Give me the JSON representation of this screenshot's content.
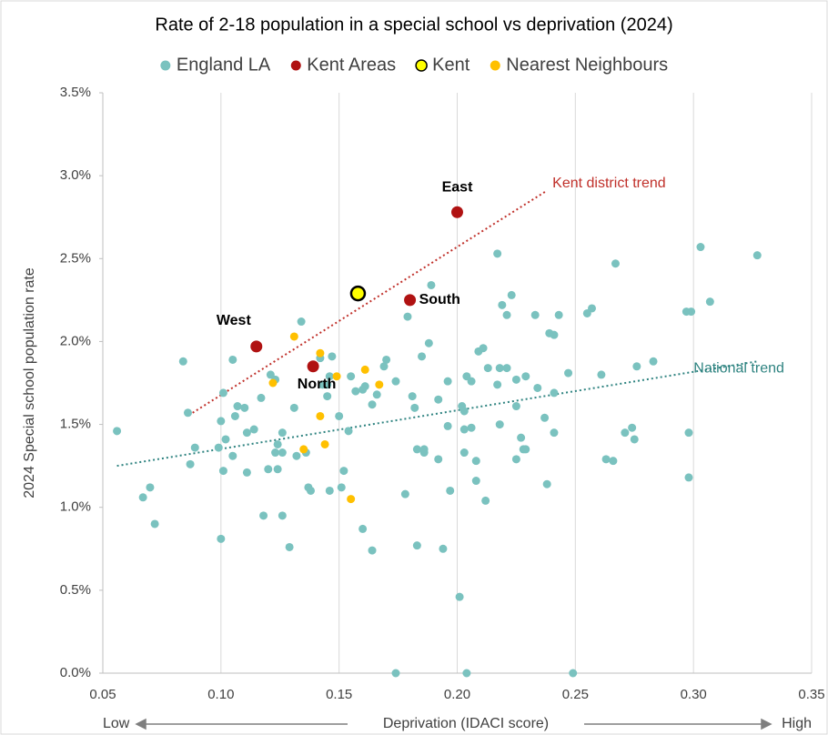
{
  "chart_data": {
    "type": "scatter",
    "title": "Rate of 2-18 population in a special school vs deprivation (2024)",
    "x_label": "Deprivation (IDACI score)",
    "y_label": "2024 Special school population rate",
    "x_low": "Low",
    "x_high": "High",
    "xlim": [
      0.05,
      0.35
    ],
    "ylim": [
      0,
      3.5
    ],
    "xticks": [
      0.05,
      {
        "value": 0.1,
        "label": "0.10"
      },
      0.15,
      {
        "value": 0.2,
        "label": "0.20"
      },
      0.25,
      {
        "value": 0.3,
        "label": "0.30"
      },
      0.35
    ],
    "yticks": [
      {
        "value": 0,
        "label": "0.0%"
      },
      {
        "value": 0.5,
        "label": "0.5%"
      },
      {
        "value": 1,
        "label": "1.0%"
      },
      {
        "value": 1.5,
        "label": "1.5%"
      },
      {
        "value": 2,
        "label": "2.0%"
      },
      {
        "value": 2.5,
        "label": "2.5%"
      },
      {
        "value": 3,
        "label": "3.0%"
      },
      {
        "value": 3.5,
        "label": "3.5%"
      }
    ],
    "grid": "x",
    "series": [
      {
        "name": "England LA",
        "color": "#7ac2bf",
        "x": [
          0.056,
          0.07,
          0.067,
          0.072,
          0.084,
          0.086,
          0.087,
          0.089,
          0.1,
          0.1,
          0.101,
          0.101,
          0.102,
          0.099,
          0.105,
          0.105,
          0.107,
          0.106,
          0.11,
          0.111,
          0.111,
          0.114,
          0.117,
          0.118,
          0.12,
          0.121,
          0.123,
          0.124,
          0.123,
          0.124,
          0.126,
          0.126,
          0.126,
          0.129,
          0.131,
          0.132,
          0.134,
          0.136,
          0.137,
          0.138,
          0.142,
          0.143,
          0.145,
          0.145,
          0.146,
          0.146,
          0.147,
          0.15,
          0.151,
          0.152,
          0.154,
          0.155,
          0.157,
          0.16,
          0.161,
          0.16,
          0.164,
          0.164,
          0.166,
          0.169,
          0.17,
          0.174,
          0.178,
          0.179,
          0.181,
          0.182,
          0.183,
          0.183,
          0.185,
          0.186,
          0.186,
          0.188,
          0.189,
          0.192,
          0.192,
          0.194,
          0.196,
          0.196,
          0.197,
          0.201,
          0.202,
          0.203,
          0.203,
          0.203,
          0.204,
          0.206,
          0.206,
          0.208,
          0.208,
          0.209,
          0.211,
          0.212,
          0.213,
          0.217,
          0.217,
          0.218,
          0.218,
          0.219,
          0.221,
          0.221,
          0.223,
          0.225,
          0.225,
          0.225,
          0.227,
          0.228,
          0.229,
          0.229,
          0.233,
          0.234,
          0.237,
          0.238,
          0.239,
          0.241,
          0.241,
          0.241,
          0.243,
          0.247,
          0.249,
          0.204,
          0.174,
          0.255,
          0.257,
          0.261,
          0.263,
          0.266,
          0.267,
          0.271,
          0.274,
          0.275,
          0.276,
          0.283,
          0.297,
          0.299,
          0.298,
          0.298,
          0.303,
          0.307,
          0.327
        ],
        "values": [
          1.46,
          1.12,
          1.06,
          0.9,
          1.88,
          1.57,
          1.26,
          1.36,
          0.81,
          1.52,
          1.69,
          1.22,
          1.41,
          1.36,
          1.89,
          1.31,
          1.61,
          1.55,
          1.6,
          1.45,
          1.21,
          1.47,
          1.66,
          0.95,
          1.23,
          1.8,
          1.77,
          1.38,
          1.33,
          1.23,
          1.45,
          1.33,
          0.95,
          0.76,
          1.6,
          1.31,
          2.12,
          1.33,
          1.12,
          1.1,
          1.9,
          1.74,
          1.74,
          1.67,
          1.79,
          1.1,
          1.91,
          1.55,
          1.12,
          1.22,
          1.46,
          1.79,
          1.7,
          1.71,
          1.73,
          0.87,
          0.74,
          1.62,
          1.68,
          1.85,
          1.89,
          1.76,
          1.08,
          2.15,
          1.67,
          1.6,
          1.35,
          0.77,
          1.91,
          1.35,
          1.33,
          1.99,
          2.34,
          1.29,
          1.65,
          0.75,
          1.76,
          1.49,
          1.1,
          0.46,
          1.61,
          1.58,
          1.47,
          1.33,
          1.79,
          1.76,
          1.48,
          1.28,
          1.16,
          1.94,
          1.96,
          1.04,
          1.84,
          2.53,
          1.74,
          1.84,
          1.5,
          2.22,
          2.16,
          1.84,
          2.28,
          1.77,
          1.61,
          1.29,
          1.42,
          1.35,
          1.35,
          1.79,
          2.16,
          1.72,
          1.54,
          1.14,
          2.05,
          2.04,
          1.45,
          1.69,
          2.16,
          1.81,
          0.0,
          0.0,
          0.0,
          2.17,
          2.2,
          1.8,
          1.29,
          1.28,
          2.47,
          1.45,
          1.48,
          1.41,
          1.85,
          1.88,
          2.18,
          2.18,
          1.45,
          1.18,
          2.57,
          2.24,
          2.52
        ]
      },
      {
        "name": "Kent Areas",
        "color": "#b01212",
        "x": [
          0.115,
          0.139,
          0.18,
          0.2
        ],
        "values": [
          1.97,
          1.85,
          2.25,
          2.78
        ],
        "labels": [
          "West",
          "North",
          "South",
          "East"
        ]
      },
      {
        "name": "Kent",
        "color": "#ffff00",
        "x": [
          0.158
        ],
        "values": [
          2.29
        ]
      },
      {
        "name": "Nearest Neighbours",
        "color": "#ffc000",
        "x": [
          0.131,
          0.142,
          0.149,
          0.161,
          0.167,
          0.122,
          0.142,
          0.144,
          0.135,
          0.155
        ],
        "values": [
          2.03,
          1.93,
          1.79,
          1.83,
          1.74,
          1.75,
          1.55,
          1.38,
          1.35,
          1.05
        ]
      }
    ],
    "trendlines": [
      {
        "label": "Kent district trend",
        "color": "#c0302a",
        "x": [
          0.088,
          0.238
        ],
        "values": [
          1.57,
          2.91
        ]
      },
      {
        "label": "National trend",
        "color": "#2e8380",
        "x": [
          0.056,
          0.327
        ],
        "values": [
          1.25,
          1.88
        ]
      }
    ]
  }
}
